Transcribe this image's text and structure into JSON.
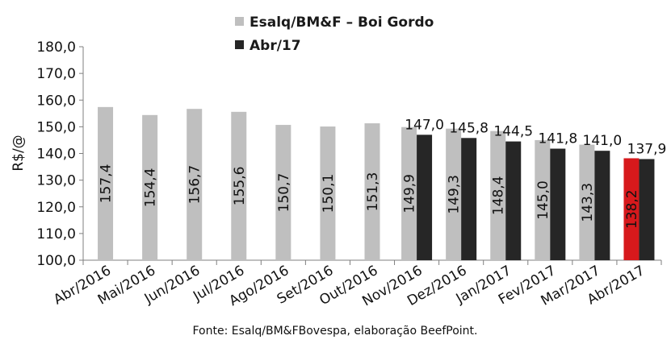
{
  "chart_data": {
    "type": "bar",
    "ylabel": "R$/@",
    "ylim": [
      100,
      180
    ],
    "ytick_step": 10,
    "ytick_labels": [
      "100,0",
      "110,0",
      "120,0",
      "130,0",
      "140,0",
      "150,0",
      "160,0",
      "170,0",
      "180,0"
    ],
    "categories": [
      "Abr/2016",
      "Mai/2016",
      "Jun/2016",
      "Jul/2016",
      "Ago/2016",
      "Set/2016",
      "Out/2016",
      "Nov/2016",
      "Dez/2016",
      "Jan/2017",
      "Fev/2017",
      "Mar/2017",
      "Abr/2017"
    ],
    "series": [
      {
        "name": "Esalq/BM&F – Boi Gordo",
        "color": "#bfbfbf",
        "highlight_color": "#d7191c",
        "highlight_index": 12,
        "values": [
          157.4,
          154.4,
          156.7,
          155.6,
          150.7,
          150.1,
          151.3,
          149.9,
          149.3,
          148.4,
          145.0,
          143.3,
          138.2
        ],
        "value_labels": [
          "157,4",
          "154,4",
          "156,7",
          "155,6",
          "150,7",
          "150,1",
          "151,3",
          "149,9",
          "149,3",
          "148,4",
          "145,0",
          "143,3",
          "138,2"
        ]
      },
      {
        "name": "Abr/17",
        "color": "#262626",
        "values": [
          null,
          null,
          null,
          null,
          null,
          null,
          null,
          147.0,
          145.8,
          144.5,
          141.8,
          141.0,
          137.9
        ],
        "value_labels": [
          null,
          null,
          null,
          null,
          null,
          null,
          null,
          "147,0",
          "145,8",
          "144,5",
          "141,8",
          "141,0",
          "137,9"
        ]
      }
    ],
    "legend_position": "top",
    "grid": false
  },
  "source": "Fonte: Esalq/BM&FBovespa, elaboração BeefPoint."
}
